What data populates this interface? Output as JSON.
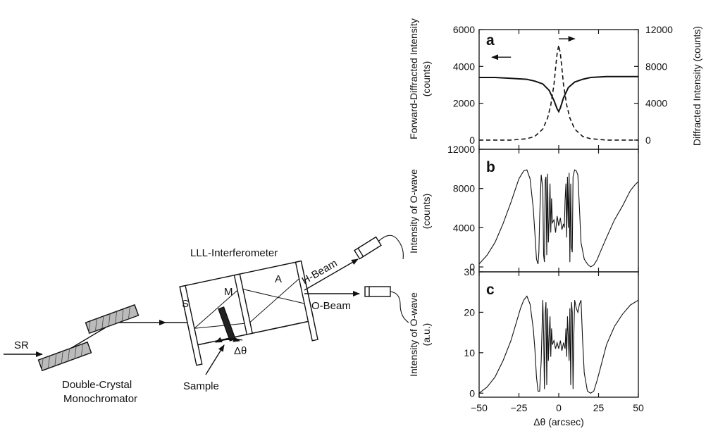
{
  "setup": {
    "sr": "SR",
    "monochromator_line1": "Double-Crystal",
    "monochromator_line2": "Monochromator",
    "interferometer": "LLL-Interferometer",
    "blade_s": "S",
    "blade_m": "M",
    "blade_a": "A",
    "h_beam": "H-Beam",
    "o_beam": "O-Beam",
    "delta_theta": "Δθ",
    "sample": "Sample"
  },
  "chart_data": [
    {
      "panel": "a",
      "type": "line",
      "ylabel_line1": "Forward-Diffracted Intensity",
      "ylabel_line2": "(counts)",
      "y2label": "Diffracted Intensity (counts)",
      "xlim": [
        -50,
        50
      ],
      "ylim": [
        -500,
        6000
      ],
      "y2lim": [
        -1000,
        12000
      ],
      "yticks": [
        "6000",
        "4000",
        "2000",
        "0"
      ],
      "yticks_values": [
        6000,
        4000,
        2000,
        0
      ],
      "y2ticks": [
        "12000",
        "8000",
        "4000",
        "0"
      ],
      "y2ticks_values": [
        12000,
        8000,
        4000,
        0
      ],
      "series": [
        {
          "style": "solid",
          "axis": "left",
          "x": [
            -50,
            -40,
            -30,
            -20,
            -15,
            -10,
            -6,
            -3,
            -1,
            0,
            1,
            3,
            6,
            10,
            15,
            20,
            30,
            40,
            50
          ],
          "y": [
            3400,
            3400,
            3350,
            3300,
            3200,
            3050,
            2700,
            2150,
            1700,
            1550,
            1750,
            2300,
            2850,
            3150,
            3300,
            3400,
            3450,
            3450,
            3450
          ]
        },
        {
          "style": "dashed",
          "axis": "right",
          "x": [
            -50,
            -30,
            -20,
            -15,
            -10,
            -7,
            -5,
            -3,
            -2,
            -1,
            0,
            1,
            2,
            3,
            5,
            7,
            10,
            15,
            20,
            30,
            50
          ],
          "y": [
            0,
            0,
            150,
            400,
            1200,
            2400,
            3800,
            6000,
            7800,
            9400,
            10300,
            9400,
            7800,
            6000,
            3800,
            2400,
            1200,
            400,
            150,
            0,
            0
          ]
        }
      ],
      "arrows": [
        {
          "x_from": -30,
          "x_to": -42,
          "y": 4500,
          "axis": "left"
        },
        {
          "x_from": 0,
          "x_to": 10,
          "y": 11000,
          "axis": "right"
        }
      ]
    },
    {
      "panel": "b",
      "type": "line",
      "ylabel_line1": "Intensity of O-wave",
      "ylabel_line2": "(counts)",
      "xlim": [
        -50,
        50
      ],
      "ylim": [
        -500,
        12000
      ],
      "yticks": [
        "12000",
        "8000",
        "4000",
        "0"
      ],
      "yticks_values": [
        12000,
        8000,
        4000,
        0
      ],
      "series": [
        {
          "style": "solid",
          "x": [
            -50,
            -45,
            -40,
            -35,
            -30,
            -25,
            -22,
            -20,
            -18,
            -16,
            -15,
            -14,
            -13,
            -12.5,
            -12,
            -11,
            -10,
            -9.5,
            -9,
            -8.5,
            -8,
            -7.5,
            -7,
            -6.5,
            -6,
            -5.5,
            -5,
            -4.5,
            -4,
            -3,
            -2,
            -1,
            0,
            1,
            2,
            3,
            3.5,
            4,
            4.5,
            5,
            5.5,
            6,
            6.5,
            7,
            7.5,
            8,
            8.5,
            9,
            9.5,
            10,
            11,
            12,
            13,
            14,
            16,
            18,
            20,
            22,
            24,
            26,
            30,
            35,
            40,
            45,
            48,
            50
          ],
          "y": [
            300,
            1200,
            2500,
            4400,
            6600,
            9000,
            9800,
            9900,
            9000,
            6000,
            3500,
            800,
            300,
            1500,
            5000,
            9400,
            8000,
            1200,
            500,
            8800,
            9200,
            1200,
            9500,
            2500,
            4800,
            8500,
            3500,
            7000,
            4500,
            4800,
            3500,
            5200,
            4200,
            5000,
            3800,
            4400,
            4000,
            6800,
            8500,
            3000,
            9200,
            4000,
            9600,
            500,
            8500,
            2000,
            1500,
            9200,
            9600,
            9900,
            9800,
            9400,
            6000,
            2500,
            800,
            300,
            0,
            200,
            700,
            1500,
            3000,
            4800,
            6200,
            7800,
            8400,
            8700
          ]
        }
      ]
    },
    {
      "panel": "c",
      "type": "line",
      "ylabel_line1": "Intensity of O-wave",
      "ylabel_line2": "(a.u.)",
      "xlabel": "Δθ (arcsec)",
      "xlim": [
        -50,
        50
      ],
      "ylim": [
        -1,
        30
      ],
      "yticks": [
        "30",
        "20",
        "10",
        "0"
      ],
      "yticks_values": [
        30,
        20,
        10,
        0
      ],
      "xticks": [
        "−50",
        "−25",
        "0",
        "25",
        "50"
      ],
      "xticks_values": [
        -50,
        -25,
        0,
        25,
        50
      ],
      "series": [
        {
          "style": "solid",
          "x": [
            -50,
            -45,
            -40,
            -35,
            -30,
            -27,
            -24,
            -22,
            -20,
            -18,
            -16,
            -15,
            -14,
            -13,
            -12,
            -11,
            -10,
            -9.5,
            -9,
            -8.5,
            -8,
            -7.5,
            -7,
            -6.5,
            -6,
            -5.5,
            -5,
            -4.5,
            -4,
            -3,
            -2,
            -1,
            0,
            1,
            2,
            3,
            4,
            4.5,
            5,
            5.5,
            6,
            6.5,
            7,
            7.5,
            8,
            8.5,
            9,
            9.5,
            10,
            11,
            12,
            13,
            14,
            15,
            16,
            18,
            20,
            22,
            24,
            26,
            30,
            35,
            40,
            45,
            50
          ],
          "y": [
            0,
            1.5,
            4,
            8,
            13,
            17,
            21,
            23,
            24,
            22,
            16,
            11,
            4,
            0.5,
            0.5,
            8,
            23,
            15,
            1,
            20,
            22.5,
            2,
            21,
            8,
            14,
            19,
            9,
            16,
            12,
            13,
            11,
            12.5,
            11,
            13,
            10.5,
            12.5,
            11,
            16,
            9,
            19,
            14,
            8,
            21,
            2,
            22.5,
            20,
            1,
            15,
            23,
            21,
            20,
            22,
            23,
            13,
            5,
            0.5,
            0,
            0.5,
            3,
            6,
            12,
            16.5,
            19.5,
            21.8,
            23
          ]
        }
      ]
    }
  ]
}
